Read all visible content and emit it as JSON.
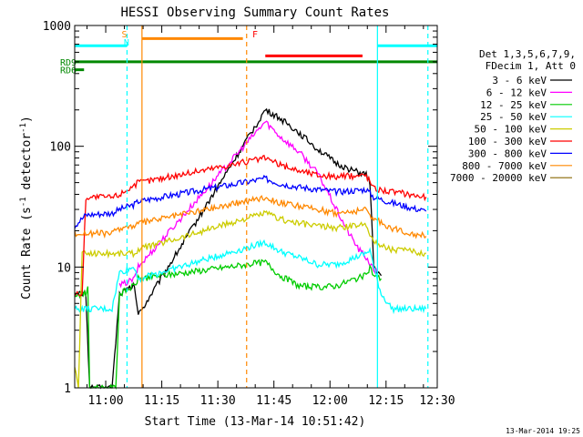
{
  "chart_data": {
    "type": "line",
    "title": "HESSI Observing Summary Count Rates",
    "xlabel": "Start Time (13-Mar-14 10:51:42)",
    "ylabel_main": "Count Rate (s",
    "ylabel_sup1": "-1",
    "ylabel_mid": " detector",
    "ylabel_sup2": "-1",
    "ylabel_end": ")",
    "x_domain_minutes": [
      0,
      97
    ],
    "y_scale": "log",
    "ylim": [
      1,
      1000
    ],
    "x_ticks": [
      {
        "label": "11:00",
        "minute": 8.3
      },
      {
        "label": "11:15",
        "minute": 23.3
      },
      {
        "label": "11:30",
        "minute": 38.3
      },
      {
        "label": "11:45",
        "minute": 53.3
      },
      {
        "label": "12:00",
        "minute": 68.3
      },
      {
        "label": "12:15",
        "minute": 83.3
      },
      {
        "label": "12:30",
        "minute": 98.3
      }
    ],
    "y_ticks": [
      {
        "label": "1",
        "value": 1
      },
      {
        "label": "10",
        "value": 10
      },
      {
        "label": "100",
        "value": 100
      },
      {
        "label": "1000",
        "value": 1000
      }
    ],
    "legend_title_1": "Det 1,3,5,6,7,9,",
    "legend_title_2": "FDecim 1, Att 0",
    "legend_position": "right",
    "series": [
      {
        "name": "3 - 6 keV",
        "color": "#000000",
        "points": [
          [
            0,
            6
          ],
          [
            3,
            6
          ],
          [
            4,
            1
          ],
          [
            7,
            1
          ],
          [
            9,
            1
          ],
          [
            10,
            1
          ],
          [
            12,
            6
          ],
          [
            16,
            7
          ],
          [
            17,
            4
          ],
          [
            51,
            200
          ],
          [
            55,
            170
          ],
          [
            60,
            130
          ],
          [
            65,
            95
          ],
          [
            70,
            72
          ],
          [
            75,
            62
          ],
          [
            78,
            58
          ],
          [
            79,
            50
          ],
          [
            80,
            10
          ],
          [
            82,
            8.5
          ]
        ]
      },
      {
        "name": "6 - 12 keV",
        "color": "#ff00ff",
        "points": [
          [
            12,
            7
          ],
          [
            16,
            8
          ],
          [
            17,
            10
          ],
          [
            51,
            160
          ],
          [
            55,
            120
          ],
          [
            60,
            90
          ],
          [
            65,
            60
          ],
          [
            68,
            40
          ],
          [
            70,
            30
          ],
          [
            73,
            20
          ],
          [
            76,
            14
          ],
          [
            78,
            12
          ],
          [
            80,
            9.5
          ],
          [
            81,
            9
          ]
        ]
      },
      {
        "name": "12 - 25 keV",
        "color": "#00cc00",
        "points": [
          [
            0,
            6
          ],
          [
            3,
            6
          ],
          [
            3.5,
            7
          ],
          [
            4,
            1
          ],
          [
            7,
            1
          ],
          [
            11,
            1
          ],
          [
            12,
            6
          ],
          [
            16,
            7
          ],
          [
            17,
            8
          ],
          [
            51,
            11
          ],
          [
            55,
            8.5
          ],
          [
            60,
            7
          ],
          [
            65,
            6.8
          ],
          [
            70,
            7
          ],
          [
            75,
            8
          ],
          [
            78,
            8.5
          ],
          [
            79,
            10
          ],
          [
            80,
            8.5
          ],
          [
            82,
            8
          ]
        ]
      },
      {
        "name": "25 - 50 keV",
        "color": "#00ffff",
        "points": [
          [
            0,
            4.5
          ],
          [
            3,
            4.5
          ],
          [
            4,
            4.5
          ],
          [
            10,
            4.5
          ],
          [
            12,
            9
          ],
          [
            16,
            10
          ],
          [
            17,
            8
          ],
          [
            51,
            16
          ],
          [
            55,
            13.5
          ],
          [
            60,
            12
          ],
          [
            65,
            10.5
          ],
          [
            70,
            10.5
          ],
          [
            75,
            12
          ],
          [
            78,
            13
          ],
          [
            79,
            14
          ],
          [
            80,
            10
          ],
          [
            82,
            6
          ],
          [
            85,
            4.5
          ],
          [
            90,
            4.5
          ],
          [
            94,
            4.5
          ]
        ]
      },
      {
        "name": "50 - 100 keV",
        "color": "#cccc00",
        "points": [
          [
            0,
            1.5
          ],
          [
            1,
            1
          ],
          [
            2,
            13
          ],
          [
            10,
            13
          ],
          [
            12,
            13
          ],
          [
            16,
            13
          ],
          [
            17,
            14
          ],
          [
            51,
            28
          ],
          [
            55,
            25
          ],
          [
            60,
            23
          ],
          [
            65,
            22
          ],
          [
            70,
            21
          ],
          [
            75,
            22
          ],
          [
            78,
            23
          ],
          [
            80,
            16
          ],
          [
            85,
            14
          ],
          [
            90,
            13.5
          ],
          [
            94,
            13
          ]
        ]
      },
      {
        "name": "100 - 300 keV",
        "color": "#ff0000",
        "points": [
          [
            0,
            6
          ],
          [
            2,
            6
          ],
          [
            3,
            38
          ],
          [
            10,
            38
          ],
          [
            12,
            40
          ],
          [
            16,
            48
          ],
          [
            17,
            50
          ],
          [
            51,
            80
          ],
          [
            55,
            70
          ],
          [
            60,
            63
          ],
          [
            65,
            58
          ],
          [
            70,
            56
          ],
          [
            75,
            57
          ],
          [
            78,
            58
          ],
          [
            80,
            45
          ],
          [
            85,
            42
          ],
          [
            90,
            40
          ],
          [
            94,
            38
          ]
        ]
      },
      {
        "name": "300 - 800 keV",
        "color": "#0000ff",
        "points": [
          [
            0,
            22
          ],
          [
            3,
            27
          ],
          [
            10,
            28
          ],
          [
            12,
            30
          ],
          [
            16,
            33
          ],
          [
            17,
            35
          ],
          [
            51,
            54
          ],
          [
            55,
            49
          ],
          [
            60,
            46
          ],
          [
            65,
            44
          ],
          [
            70,
            42
          ],
          [
            75,
            43
          ],
          [
            78,
            44
          ],
          [
            80,
            38
          ],
          [
            85,
            34
          ],
          [
            90,
            31
          ],
          [
            94,
            29
          ]
        ]
      },
      {
        "name": "800 - 7000 keV",
        "color": "#ff8800",
        "points": [
          [
            0,
            19
          ],
          [
            3,
            19
          ],
          [
            10,
            19
          ],
          [
            12,
            21
          ],
          [
            16,
            22
          ],
          [
            17,
            23
          ],
          [
            51,
            38
          ],
          [
            55,
            34
          ],
          [
            60,
            32
          ],
          [
            65,
            30
          ],
          [
            70,
            28
          ],
          [
            75,
            29
          ],
          [
            78,
            30
          ],
          [
            80,
            25
          ],
          [
            85,
            21
          ],
          [
            90,
            19
          ],
          [
            94,
            18
          ]
        ]
      },
      {
        "name": "7000 - 20000 keV",
        "color": "#886600",
        "points": []
      }
    ],
    "status_bars": [
      {
        "label": "RD9",
        "color": "#008800",
        "y": 500,
        "from": 0,
        "to": 97
      },
      {
        "label": "RD6",
        "color": "#008800",
        "y": 430,
        "from": 0,
        "to": 2.5
      },
      {
        "label": "",
        "color": "#00ffff",
        "y": 680,
        "from": 0,
        "to": 14
      },
      {
        "label": "",
        "color": "#00ffff",
        "y": 680,
        "from": 81,
        "to": 97
      },
      {
        "label": "",
        "color": "#ff8800",
        "y": 780,
        "from": 18,
        "to": 45
      },
      {
        "label": "",
        "color": "#ff0000",
        "y": 560,
        "from": 51,
        "to": 77
      }
    ],
    "markers": [
      {
        "label": "S",
        "color": "#ff8800",
        "minute": 14
      },
      {
        "label": "N",
        "color": "#00ffff",
        "minute": 14.6
      },
      {
        "label": "F",
        "color": "#ff0000",
        "minute": 49
      },
      {
        "label": "",
        "color": "#ff8800",
        "minute": 18
      }
    ],
    "vlines": [
      {
        "minute": 14,
        "color": "#00ffff",
        "style": "dashed"
      },
      {
        "minute": 18,
        "color": "#ff8800",
        "style": "solid"
      },
      {
        "minute": 46,
        "color": "#ff8800",
        "style": "dashed"
      },
      {
        "minute": 81,
        "color": "#00ffff",
        "style": "solid"
      },
      {
        "minute": 94.5,
        "color": "#00ffff",
        "style": "dashed"
      }
    ],
    "timestamp": "13-Mar-2014 19:25"
  }
}
